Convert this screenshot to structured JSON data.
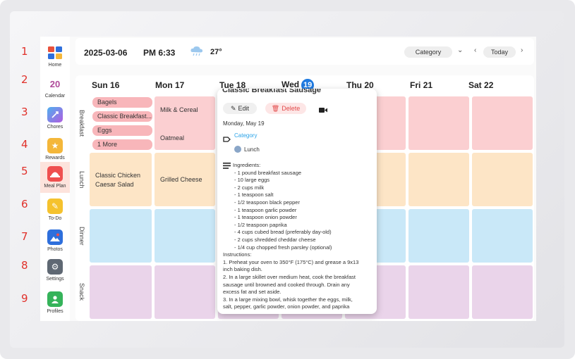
{
  "markers": [
    "1",
    "2",
    "3",
    "4",
    "5",
    "6",
    "7",
    "8",
    "9"
  ],
  "sidebar": {
    "items": [
      {
        "label": "Home",
        "icon": "home-grid-icon",
        "color": "#e8513c"
      },
      {
        "label": "Calendar",
        "icon": "calendar-icon",
        "badge": "20",
        "color": "#b04a9a"
      },
      {
        "label": "Chores",
        "icon": "chores-icon",
        "color": "#7b5ce0"
      },
      {
        "label": "Rewards",
        "icon": "star-icon",
        "color": "#f4b73a"
      },
      {
        "label": "Meal Plan",
        "icon": "meal-plan-icon",
        "color": "#ef4f4f"
      },
      {
        "label": "To-Do",
        "icon": "pencil-icon",
        "color": "#f5c22e"
      },
      {
        "label": "Photos",
        "icon": "photos-icon",
        "color": "#2e6fdc"
      },
      {
        "label": "Settings",
        "icon": "gear-icon",
        "color": "#5f6873"
      },
      {
        "label": "Profiles",
        "icon": "profile-icon",
        "color": "#35b35a"
      }
    ],
    "active_index": 4
  },
  "header": {
    "date": "2025-03-06",
    "time": "PM 6:33",
    "weather_icon": "rain-cloud-icon",
    "temperature": "27°",
    "category_label": "Category",
    "today_label": "Today"
  },
  "calendar": {
    "days": [
      {
        "name": "Sun",
        "num": "16"
      },
      {
        "name": "Mon",
        "num": "17"
      },
      {
        "name": "Tue",
        "num": "18"
      },
      {
        "name": "Wed",
        "num": "19"
      },
      {
        "name": "Thu",
        "num": "20"
      },
      {
        "name": "Fri",
        "num": "21"
      },
      {
        "name": "Sat",
        "num": "22"
      }
    ],
    "meals": [
      "Breakfast",
      "Lunch",
      "Dinner",
      "Snack"
    ],
    "sun_breakfast": [
      "Bagels",
      "Classic Breakfast...",
      "Eggs",
      "1 More"
    ],
    "mon_breakfast": [
      "Milk & Cereal",
      "Oatmeal"
    ],
    "sun_lunch": "Classic Chicken Caesar Salad",
    "mon_lunch": "Grilled Cheese"
  },
  "popup": {
    "title": "Classic Breakfast Sausage",
    "edit_label": "Edit",
    "delete_label": "Delete",
    "date_line": "Monday, May 19",
    "category": "Category",
    "meal": "Lunch",
    "ingredients_header": "Ingredients:",
    "ingredients": [
      "- 1 pound breakfast sausage",
      "- 10 large eggs",
      "- 2 cups milk",
      "- 1 teaspoon salt",
      "- 1/2 teaspoon black pepper",
      "- 1 teaspoon garlic powder",
      "- 1 teaspoon onion powder",
      "- 1/2 teaspoon paprika",
      "- 4 cups cubed bread (preferably day-old)",
      "- 2 cups shredded cheddar cheese",
      "- 1/4 cup chopped fresh parsley (optional)"
    ],
    "instructions_header": "Instructions:",
    "instructions": [
      "1. Preheat your oven to 350°F (175°C) and grease a 9x13 inch baking dish.",
      "2. In a large skillet over medium heat, cook the breakfast sausage until browned and cooked through. Drain any excess fat and set aside.",
      "3. In a large mixing bowl, whisk together the eggs, milk, salt, pepper, garlic powder, onion powder, and paprika"
    ]
  }
}
